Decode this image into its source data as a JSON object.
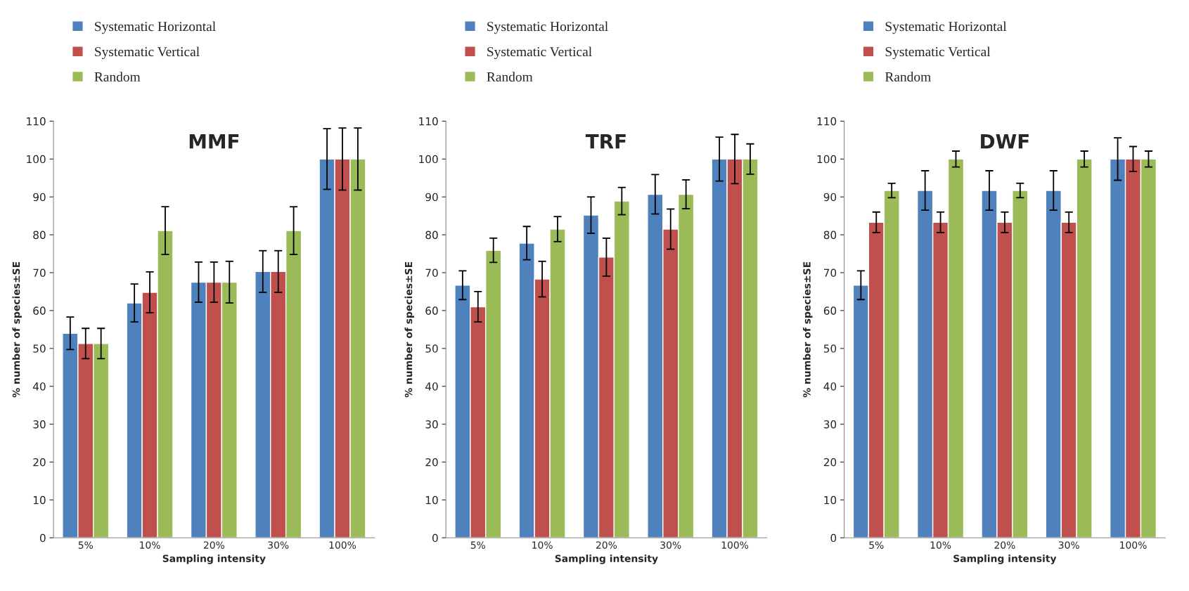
{
  "chart_data": [
    {
      "type": "bar",
      "title": "MMF",
      "xlabel": "Sampling intensity",
      "ylabel": "% number of species±SE",
      "categories": [
        "5%",
        "10%",
        "20%",
        "30%",
        "100%"
      ],
      "ylim": [
        0,
        110
      ],
      "yticks": [
        0,
        10,
        20,
        30,
        40,
        50,
        60,
        70,
        80,
        90,
        100,
        110
      ],
      "grid": false,
      "legend": "top left",
      "series": [
        {
          "name": "Systematic Horizontal",
          "color": "#4f81bd",
          "values": [
            54,
            62,
            67.5,
            70.3,
            100
          ],
          "errors": [
            4.3,
            5,
            5.3,
            5.5,
            8
          ]
        },
        {
          "name": "Systematic Vertical",
          "color": "#c0504d",
          "values": [
            51.3,
            64.8,
            67.5,
            70.3,
            100
          ],
          "errors": [
            4,
            5.4,
            5.3,
            5.5,
            8.2
          ]
        },
        {
          "name": "Random",
          "color": "#9bbb59",
          "values": [
            51.3,
            81.1,
            67.5,
            81.1,
            100
          ],
          "errors": [
            4,
            6.3,
            5.5,
            6.3,
            8.2
          ]
        }
      ]
    },
    {
      "type": "bar",
      "title": "TRF",
      "xlabel": "Sampling intensity",
      "ylabel": "% number of species±SE",
      "categories": [
        "5%",
        "10%",
        "20%",
        "30%",
        "100%"
      ],
      "ylim": [
        0,
        110
      ],
      "yticks": [
        0,
        10,
        20,
        30,
        40,
        50,
        60,
        70,
        80,
        90,
        100,
        110
      ],
      "grid": false,
      "legend": "top left",
      "series": [
        {
          "name": "Systematic Horizontal",
          "color": "#4f81bd",
          "values": [
            66.7,
            77.8,
            85.2,
            90.7,
            100
          ],
          "errors": [
            3.8,
            4.4,
            4.8,
            5.2,
            5.8
          ]
        },
        {
          "name": "Systematic Vertical",
          "color": "#c0504d",
          "values": [
            61,
            68.3,
            74.1,
            81.5,
            100
          ],
          "errors": [
            4,
            4.7,
            5,
            5.3,
            6.5
          ]
        },
        {
          "name": "Random",
          "color": "#9bbb59",
          "values": [
            75.9,
            81.5,
            88.9,
            90.7,
            100
          ],
          "errors": [
            3.2,
            3.3,
            3.6,
            3.8,
            4
          ]
        }
      ]
    },
    {
      "type": "bar",
      "title": "DWF",
      "xlabel": "Sampling intensity",
      "ylabel": "% number of species±SE",
      "categories": [
        "5%",
        "10%",
        "20%",
        "30%",
        "100%"
      ],
      "ylim": [
        0,
        110
      ],
      "yticks": [
        0,
        10,
        20,
        30,
        40,
        50,
        60,
        70,
        80,
        90,
        100,
        110
      ],
      "grid": false,
      "legend": "top left",
      "series": [
        {
          "name": "Systematic Horizontal",
          "color": "#4f81bd",
          "values": [
            66.7,
            91.7,
            91.7,
            91.7,
            100
          ],
          "errors": [
            3.8,
            5.2,
            5.2,
            5.2,
            5.6
          ]
        },
        {
          "name": "Systematic Vertical",
          "color": "#c0504d",
          "values": [
            83.3,
            83.3,
            83.3,
            83.3,
            100
          ],
          "errors": [
            2.7,
            2.7,
            2.7,
            2.7,
            3.3
          ]
        },
        {
          "name": "Random",
          "color": "#9bbb59",
          "values": [
            91.7,
            100,
            91.7,
            100,
            100
          ],
          "errors": [
            1.9,
            2.1,
            1.9,
            2.1,
            2.1
          ]
        }
      ]
    }
  ]
}
